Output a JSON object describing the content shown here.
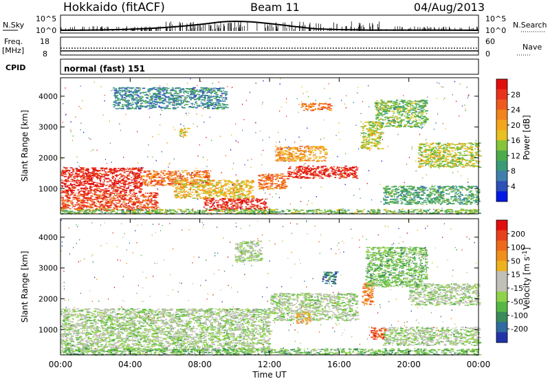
{
  "header": {
    "station": "Hokkaido (fitACF)",
    "beam": "Beam 11",
    "date": "04/Aug/2013"
  },
  "nsky_panel": {
    "left_label": "N.Sky",
    "right_label": "N.Search",
    "left_ticks": [
      "10^5",
      "10^0"
    ],
    "right_ticks": [
      "10^5",
      "10^0"
    ]
  },
  "freq_panel": {
    "left_label_1": "Freq.",
    "left_label_2": "[MHz]",
    "right_label": "Nave",
    "left_ticks": [
      "18",
      "8"
    ],
    "right_ticks": [
      "60",
      "0"
    ]
  },
  "cpid_panel": {
    "label": "CPID",
    "value": "normal (fast) 151"
  },
  "x_axis": {
    "label": "Time UT",
    "ticks": [
      "00:00",
      "04:00",
      "08:00",
      "12:00",
      "16:00",
      "20:00",
      "00:00"
    ]
  },
  "chart_data": [
    {
      "type": "heatmap",
      "panel": "power",
      "ylabel": "Slant Range [km]",
      "ylim": [
        180,
        4600
      ],
      "y_ticks": [
        1000,
        2000,
        3000,
        4000
      ],
      "xlim_hours": [
        0,
        24
      ],
      "colorbar": {
        "label": "Power [dB]",
        "ticks": [
          "4",
          "8",
          "12",
          "16",
          "20",
          "24",
          "28"
        ],
        "colors": [
          "#0019e6",
          "#2c4fb8",
          "#3f7fae",
          "#3a9a78",
          "#4cab4c",
          "#86c43a",
          "#e8c020",
          "#f5a61a",
          "#f2841c",
          "#ee5a1e",
          "#e8321c",
          "#e10e0e"
        ]
      },
      "regions": [
        {
          "t0": 0.0,
          "t1": 4.6,
          "r0": 900,
          "r1": 1700,
          "level": 11
        },
        {
          "t0": 0.0,
          "t1": 5.5,
          "r0": 300,
          "r1": 900,
          "level": 10
        },
        {
          "t0": 4.6,
          "t1": 8.5,
          "r0": 1100,
          "r1": 1600,
          "level": 9
        },
        {
          "t0": 8.2,
          "t1": 11.8,
          "r0": 300,
          "r1": 700,
          "level": 11
        },
        {
          "t0": 6.5,
          "t1": 11.0,
          "r0": 700,
          "r1": 1300,
          "level": 7
        },
        {
          "t0": 11.3,
          "t1": 13.0,
          "r0": 1000,
          "r1": 1500,
          "level": 9
        },
        {
          "t0": 13.0,
          "t1": 17.0,
          "r0": 1350,
          "r1": 1750,
          "level": 11
        },
        {
          "t0": 12.3,
          "t1": 15.2,
          "r0": 1900,
          "r1": 2400,
          "level": 8
        },
        {
          "t0": 13.8,
          "t1": 15.5,
          "r0": 3550,
          "r1": 3800,
          "level": 9
        },
        {
          "t0": 6.8,
          "t1": 7.3,
          "r0": 2700,
          "r1": 3000,
          "level": 7
        },
        {
          "t0": 17.2,
          "t1": 18.4,
          "r0": 2300,
          "r1": 3200,
          "level": 6
        },
        {
          "t0": 18.5,
          "t1": 24.0,
          "r0": 500,
          "r1": 1100,
          "level": 4
        },
        {
          "t0": 20.5,
          "t1": 24.0,
          "r0": 1700,
          "r1": 2500,
          "level": 6
        },
        {
          "t0": 3.0,
          "t1": 9.5,
          "r0": 3600,
          "r1": 4300,
          "level": 3
        },
        {
          "t0": 18.0,
          "t1": 21.0,
          "r0": 3000,
          "r1": 3900,
          "level": 5
        },
        {
          "t0": 0.0,
          "t1": 24.0,
          "r0": 190,
          "r1": 350,
          "level": 5
        }
      ]
    },
    {
      "type": "heatmap",
      "panel": "velocity",
      "ylabel": "Slant Range [km]",
      "ylim": [
        180,
        4600
      ],
      "y_ticks": [
        1000,
        2000,
        3000,
        4000
      ],
      "xlim_hours": [
        0,
        24
      ],
      "colorbar": {
        "label": "Velocity [m s^-1]",
        "ticks": [
          "200",
          "100",
          "50",
          "15",
          "-15",
          "-50",
          "-100",
          "-200"
        ],
        "colors": [
          "#2233aa",
          "#2f6aa0",
          "#3a8a5a",
          "#55b845",
          "#8fd24a",
          "#c0c0b8",
          "#c0c0b8",
          "#f0b21c",
          "#f0901a",
          "#ee6a1a",
          "#e8401c",
          "#e10e0e"
        ]
      },
      "regions": [
        {
          "t0": 0.0,
          "t1": 12.0,
          "r0": 300,
          "r1": 1700,
          "level": 5
        },
        {
          "t0": 12.0,
          "t1": 17.0,
          "r0": 1300,
          "r1": 2200,
          "level": 5
        },
        {
          "t0": 13.5,
          "t1": 14.3,
          "r0": 1200,
          "r1": 1600,
          "level": 8
        },
        {
          "t0": 15.0,
          "t1": 15.8,
          "r0": 2500,
          "r1": 2900,
          "level": 2
        },
        {
          "t0": 17.3,
          "t1": 17.9,
          "r0": 1800,
          "r1": 2600,
          "level": 9
        },
        {
          "t0": 17.8,
          "t1": 18.6,
          "r0": 700,
          "r1": 1100,
          "level": 10
        },
        {
          "t0": 18.5,
          "t1": 24.0,
          "r0": 500,
          "r1": 1100,
          "level": 5
        },
        {
          "t0": 20.0,
          "t1": 24.0,
          "r0": 1800,
          "r1": 2500,
          "level": 5
        },
        {
          "t0": 0.0,
          "t1": 24.0,
          "r0": 190,
          "r1": 400,
          "level": 4
        },
        {
          "t0": 17.5,
          "t1": 21.0,
          "r0": 2400,
          "r1": 3700,
          "level": 4
        },
        {
          "t0": 10.0,
          "t1": 11.5,
          "r0": 3200,
          "r1": 3900,
          "level": 5
        }
      ]
    }
  ]
}
